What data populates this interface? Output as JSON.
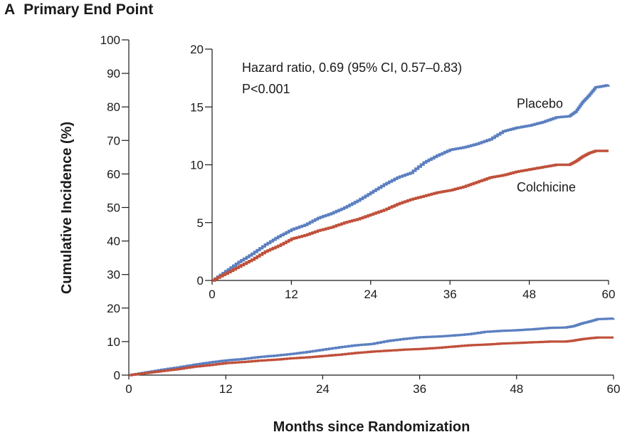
{
  "panel": {
    "letter": "A",
    "title": "Primary End Point"
  },
  "chart_data": [
    {
      "type": "line",
      "role": "main",
      "xlabel": "Months since Randomization",
      "ylabel": "Cumulative Incidence (%)",
      "xlim": [
        0,
        60
      ],
      "ylim": [
        0,
        100
      ],
      "xticks": [
        0,
        12,
        24,
        36,
        48,
        60
      ],
      "yticks": [
        0,
        10,
        20,
        30,
        40,
        50,
        60,
        70,
        80,
        90,
        100
      ],
      "grid": false,
      "step": true,
      "series": [
        {
          "name": "Placebo",
          "color": "#5b7fc0",
          "x": [
            0,
            2,
            4,
            6,
            8,
            10,
            12,
            14,
            16,
            18,
            20,
            22,
            24,
            26,
            28,
            30,
            32,
            34,
            36,
            38,
            40,
            42,
            44,
            46,
            48,
            50,
            52,
            54,
            55,
            56,
            57,
            58,
            60
          ],
          "y": [
            0,
            0.8,
            1.6,
            2.3,
            3.1,
            3.8,
            4.4,
            4.8,
            5.4,
            5.8,
            6.3,
            6.9,
            7.6,
            8.3,
            8.9,
            9.3,
            10.2,
            10.8,
            11.3,
            11.5,
            11.8,
            12.2,
            12.9,
            13.2,
            13.4,
            13.7,
            14.1,
            14.2,
            14.6,
            15.4,
            16.0,
            16.7,
            16.9
          ]
        },
        {
          "name": "Colchicine",
          "color": "#c0503a",
          "x": [
            0,
            2,
            4,
            6,
            8,
            10,
            12,
            14,
            16,
            18,
            20,
            22,
            24,
            26,
            28,
            30,
            32,
            34,
            36,
            38,
            40,
            42,
            44,
            46,
            48,
            50,
            52,
            54,
            55,
            56,
            57,
            58,
            60
          ],
          "y": [
            0,
            0.6,
            1.2,
            1.8,
            2.5,
            3.0,
            3.6,
            3.9,
            4.3,
            4.6,
            5.0,
            5.3,
            5.7,
            6.1,
            6.6,
            7.0,
            7.3,
            7.6,
            7.8,
            8.1,
            8.5,
            8.9,
            9.1,
            9.4,
            9.6,
            9.8,
            10.0,
            10.0,
            10.3,
            10.7,
            11.0,
            11.2,
            11.2
          ]
        }
      ]
    },
    {
      "type": "line",
      "role": "inset",
      "xlim": [
        0,
        60
      ],
      "ylim": [
        0,
        20
      ],
      "xticks": [
        0,
        12,
        24,
        36,
        48,
        60
      ],
      "yticks": [
        0,
        5,
        10,
        15,
        20
      ],
      "grid": false,
      "step": true,
      "annotations": {
        "hazard_ratio": "Hazard ratio, 0.69 (95% CI, 0.57–0.83)",
        "p_value": "P<0.001"
      },
      "series": [
        {
          "name": "Placebo",
          "color": "#5b7fc0",
          "x": [
            0,
            2,
            4,
            6,
            8,
            10,
            12,
            14,
            16,
            18,
            20,
            22,
            24,
            26,
            28,
            30,
            32,
            34,
            36,
            38,
            40,
            42,
            44,
            46,
            48,
            50,
            52,
            54,
            55,
            56,
            57,
            58,
            60
          ],
          "y": [
            0,
            0.8,
            1.6,
            2.3,
            3.1,
            3.8,
            4.4,
            4.8,
            5.4,
            5.8,
            6.3,
            6.9,
            7.6,
            8.3,
            8.9,
            9.3,
            10.2,
            10.8,
            11.3,
            11.5,
            11.8,
            12.2,
            12.9,
            13.2,
            13.4,
            13.7,
            14.1,
            14.2,
            14.6,
            15.4,
            16.0,
            16.7,
            16.9
          ]
        },
        {
          "name": "Colchicine",
          "color": "#c0503a",
          "x": [
            0,
            2,
            4,
            6,
            8,
            10,
            12,
            14,
            16,
            18,
            20,
            22,
            24,
            26,
            28,
            30,
            32,
            34,
            36,
            38,
            40,
            42,
            44,
            46,
            48,
            50,
            52,
            54,
            55,
            56,
            57,
            58,
            60
          ],
          "y": [
            0,
            0.6,
            1.2,
            1.8,
            2.5,
            3.0,
            3.6,
            3.9,
            4.3,
            4.6,
            5.0,
            5.3,
            5.7,
            6.1,
            6.6,
            7.0,
            7.3,
            7.6,
            7.8,
            8.1,
            8.5,
            8.9,
            9.1,
            9.4,
            9.6,
            9.8,
            10.0,
            10.0,
            10.3,
            10.7,
            11.0,
            11.2,
            11.2
          ]
        }
      ]
    }
  ]
}
